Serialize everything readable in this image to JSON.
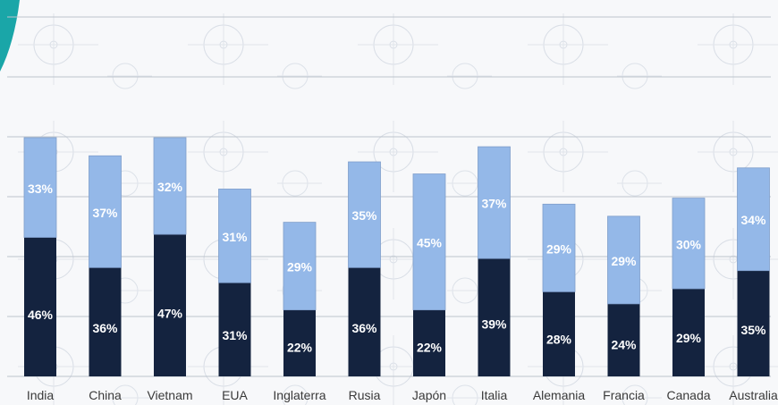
{
  "chart_data": {
    "type": "bar",
    "stacked": true,
    "categories": [
      "India",
      "China",
      "Vietnam",
      "EUA",
      "Inglaterra",
      "Rusia",
      "Japón",
      "Italia",
      "Alemania",
      "Francia",
      "Canada",
      "Australia"
    ],
    "series": [
      {
        "values": [
          46,
          36,
          47,
          31,
          22,
          36,
          22,
          39,
          28,
          24,
          29,
          35
        ],
        "labels": [
          "46%",
          "36%",
          "47%",
          "31%",
          "22%",
          "36%",
          "22%",
          "39%",
          "28%",
          "24%",
          "29%",
          "35%"
        ]
      },
      {
        "values": [
          33,
          37,
          32,
          31,
          29,
          35,
          45,
          37,
          29,
          29,
          30,
          34
        ],
        "labels": [
          "33%",
          "37%",
          "32%",
          "31%",
          "29%",
          "35%",
          "45%",
          "37%",
          "29%",
          "29%",
          "30%",
          "34%"
        ]
      }
    ],
    "grid": true,
    "legend": "none"
  },
  "colors": {
    "dark": "#14233f",
    "light": "#94b8e8",
    "grid": "#bcc3cc",
    "axis_text": "#3a3a3a",
    "accent": "#1aa6a8"
  }
}
